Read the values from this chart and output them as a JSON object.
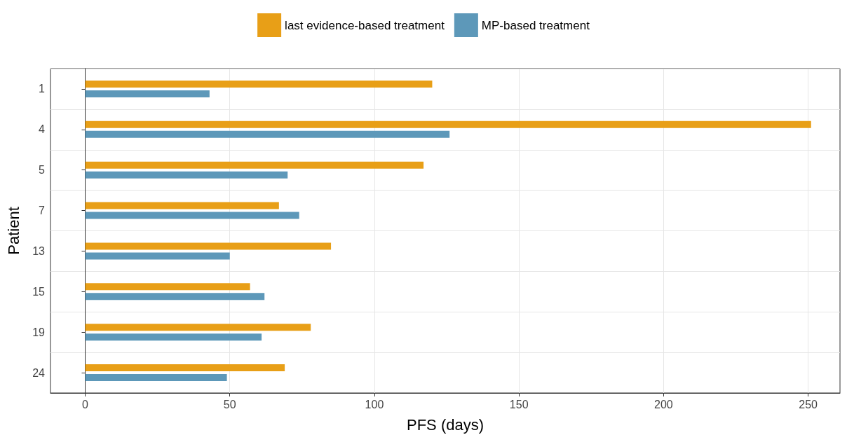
{
  "chart_data": {
    "type": "bar",
    "orientation": "horizontal",
    "xlabel": "PFS (days)",
    "ylabel": "Patient",
    "categories": [
      "1",
      "4",
      "5",
      "7",
      "13",
      "15",
      "19",
      "24"
    ],
    "series": [
      {
        "name": "last evidence‑based treatment",
        "color": "#e89f17",
        "values": [
          120,
          251,
          117,
          67,
          85,
          57,
          78,
          69
        ]
      },
      {
        "name": "MP‑based treatment",
        "color": "#5d98b9",
        "values": [
          43,
          126,
          70,
          74,
          50,
          62,
          61,
          49
        ]
      }
    ],
    "xlim": [
      -12,
      261
    ],
    "xticks": [
      0,
      50,
      100,
      150,
      200,
      250
    ],
    "grid": true,
    "legend": "top"
  }
}
